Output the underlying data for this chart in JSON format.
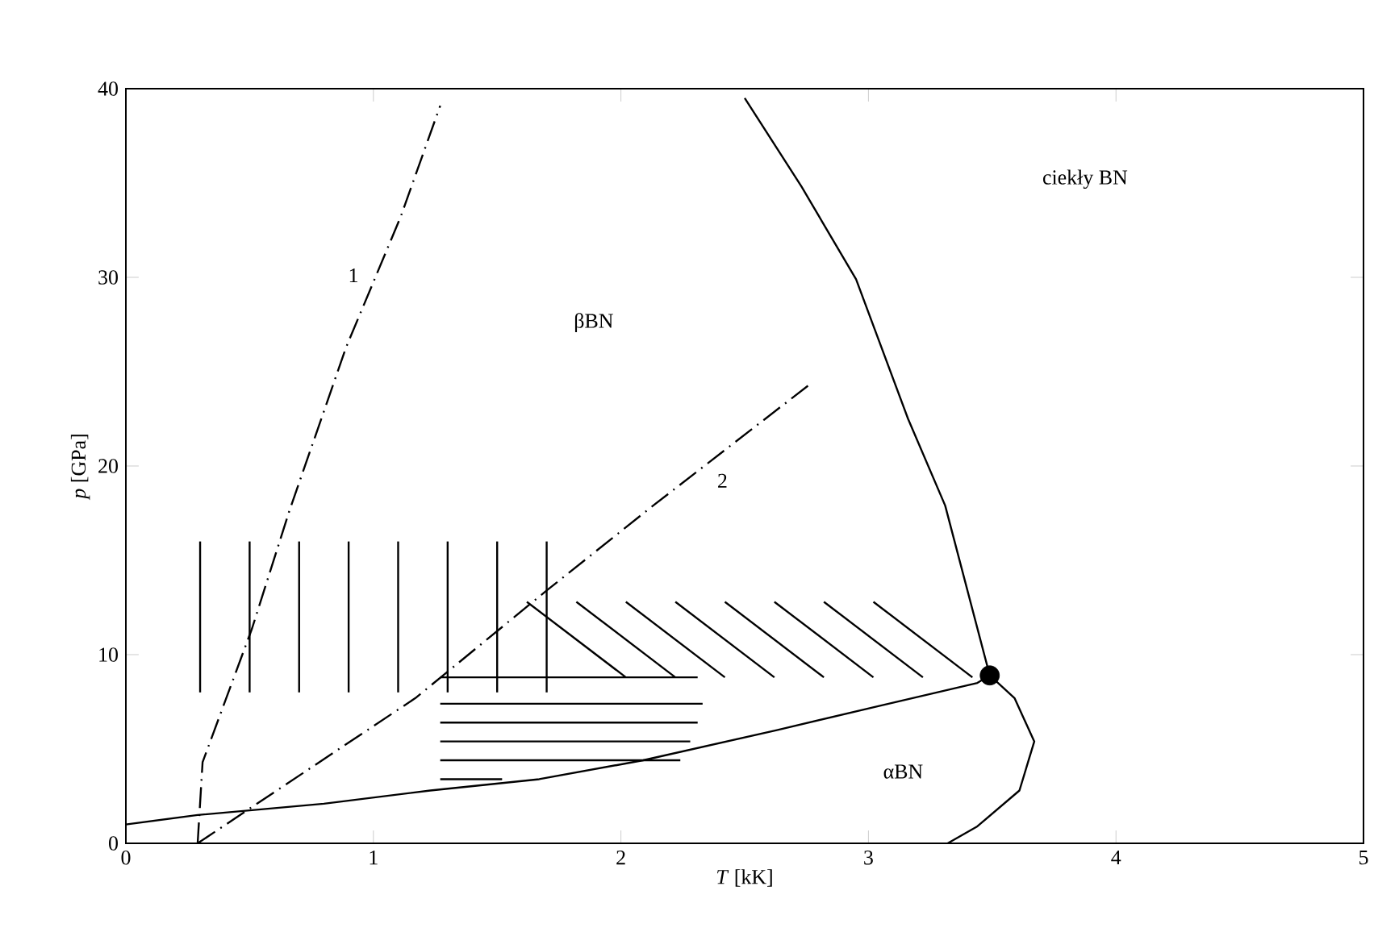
{
  "chart_data": {
    "type": "line",
    "xlabel": "*T* [kK]",
    "ylabel": "*p* [GPa]",
    "xlim": [
      0,
      5
    ],
    "ylim": [
      0,
      40
    ],
    "xticks": [
      0,
      1,
      2,
      3,
      4,
      5
    ],
    "yticks": [
      0,
      10,
      20,
      30,
      40
    ],
    "series": [
      {
        "color": "#000000",
        "line_style": "solid",
        "x": [
          2.5,
          2.73,
          2.95,
          3.16,
          3.31,
          3.49
        ],
        "values": [
          39.5,
          34.8,
          29.9,
          22.5,
          17.9,
          8.9
        ]
      },
      {
        "color": "#000000",
        "line_style": "solid",
        "x": [
          3.49,
          3.59,
          3.67,
          3.61,
          3.44,
          3.32
        ],
        "values": [
          8.9,
          7.7,
          5.4,
          2.8,
          0.9,
          0
        ]
      },
      {
        "color": "#000000",
        "line_style": "solid",
        "x": [
          0,
          0.29,
          0.8,
          1.23,
          1.67,
          2.09,
          2.63,
          3.05,
          3.44,
          3.49
        ],
        "values": [
          1.0,
          1.5,
          2.1,
          2.8,
          3.4,
          4.4,
          6.0,
          7.3,
          8.5,
          8.9
        ]
      },
      {
        "name": "1",
        "color": "#000000",
        "line_style": "dashdot",
        "x": [
          0.29,
          0.31,
          0.51,
          0.66,
          0.89,
          1.11,
          1.27
        ],
        "values": [
          0,
          4.3,
          11.4,
          17.6,
          26.3,
          33.2,
          39.1
        ]
      },
      {
        "name": "2",
        "color": "#000000",
        "line_style": "dashdot",
        "x": [
          0.29,
          1.17,
          1.7,
          2.13,
          2.77
        ],
        "values": [
          0,
          7.7,
          13.4,
          17.9,
          24.4
        ]
      },
      {
        "color": "#000000",
        "line_style": "solid",
        "x": [
          0.3,
          0.3
        ],
        "values": [
          8,
          16
        ]
      },
      {
        "color": "#000000",
        "line_style": "solid",
        "x": [
          0.5,
          0.5
        ],
        "values": [
          8,
          16
        ]
      },
      {
        "color": "#000000",
        "line_style": "solid",
        "x": [
          0.7,
          0.7
        ],
        "values": [
          8,
          16
        ]
      },
      {
        "color": "#000000",
        "line_style": "solid",
        "x": [
          0.9,
          0.9
        ],
        "values": [
          8,
          16
        ]
      },
      {
        "color": "#000000",
        "line_style": "solid",
        "x": [
          1.1,
          1.1
        ],
        "values": [
          8,
          16
        ]
      },
      {
        "color": "#000000",
        "line_style": "solid",
        "x": [
          1.3,
          1.3
        ],
        "values": [
          8,
          16
        ]
      },
      {
        "color": "#000000",
        "line_style": "solid",
        "x": [
          1.5,
          1.5
        ],
        "values": [
          8,
          16
        ]
      },
      {
        "color": "#000000",
        "line_style": "solid",
        "x": [
          1.7,
          1.7
        ],
        "values": [
          8,
          16
        ]
      },
      {
        "color": "#000000",
        "line_style": "solid",
        "x": [
          1.27,
          2.31
        ],
        "values": [
          8.8,
          8.8
        ]
      },
      {
        "color": "#000000",
        "line_style": "solid",
        "x": [
          1.27,
          2.33
        ],
        "values": [
          7.4,
          7.4
        ]
      },
      {
        "color": "#000000",
        "line_style": "solid",
        "x": [
          1.27,
          2.31
        ],
        "values": [
          6.4,
          6.4
        ]
      },
      {
        "color": "#000000",
        "line_style": "solid",
        "x": [
          1.27,
          2.28
        ],
        "values": [
          5.4,
          5.4
        ]
      },
      {
        "color": "#000000",
        "line_style": "solid",
        "x": [
          1.27,
          2.24
        ],
        "values": [
          4.4,
          4.4
        ]
      },
      {
        "color": "#000000",
        "line_style": "solid",
        "x": [
          1.27,
          1.52
        ],
        "values": [
          3.4,
          3.4
        ]
      },
      {
        "color": "#000000",
        "line_style": "solid",
        "x": [
          1.62,
          2.02
        ],
        "values": [
          12.8,
          8.8
        ]
      },
      {
        "color": "#000000",
        "line_style": "solid",
        "x": [
          1.82,
          2.22
        ],
        "values": [
          12.8,
          8.8
        ]
      },
      {
        "color": "#000000",
        "line_style": "solid",
        "x": [
          2.02,
          2.42
        ],
        "values": [
          12.8,
          8.8
        ]
      },
      {
        "color": "#000000",
        "line_style": "solid",
        "x": [
          2.22,
          2.62
        ],
        "values": [
          12.8,
          8.8
        ]
      },
      {
        "color": "#000000",
        "line_style": "solid",
        "x": [
          2.42,
          2.82
        ],
        "values": [
          12.8,
          8.8
        ]
      },
      {
        "color": "#000000",
        "line_style": "solid",
        "x": [
          2.62,
          3.02
        ],
        "values": [
          12.8,
          8.8
        ]
      },
      {
        "color": "#000000",
        "line_style": "solid",
        "x": [
          2.82,
          3.22
        ],
        "values": [
          12.8,
          8.8
        ]
      },
      {
        "color": "#000000",
        "line_style": "solid",
        "x": [
          3.02,
          3.42
        ],
        "values": [
          12.8,
          8.8
        ]
      },
      {
        "type": "scatter",
        "color": "#000000",
        "marker": "circle",
        "x": [
          3.49
        ],
        "values": [
          8.9
        ]
      }
    ],
    "annotations": [
      "βBN",
      "ciekły BN",
      "αBN"
    ]
  }
}
